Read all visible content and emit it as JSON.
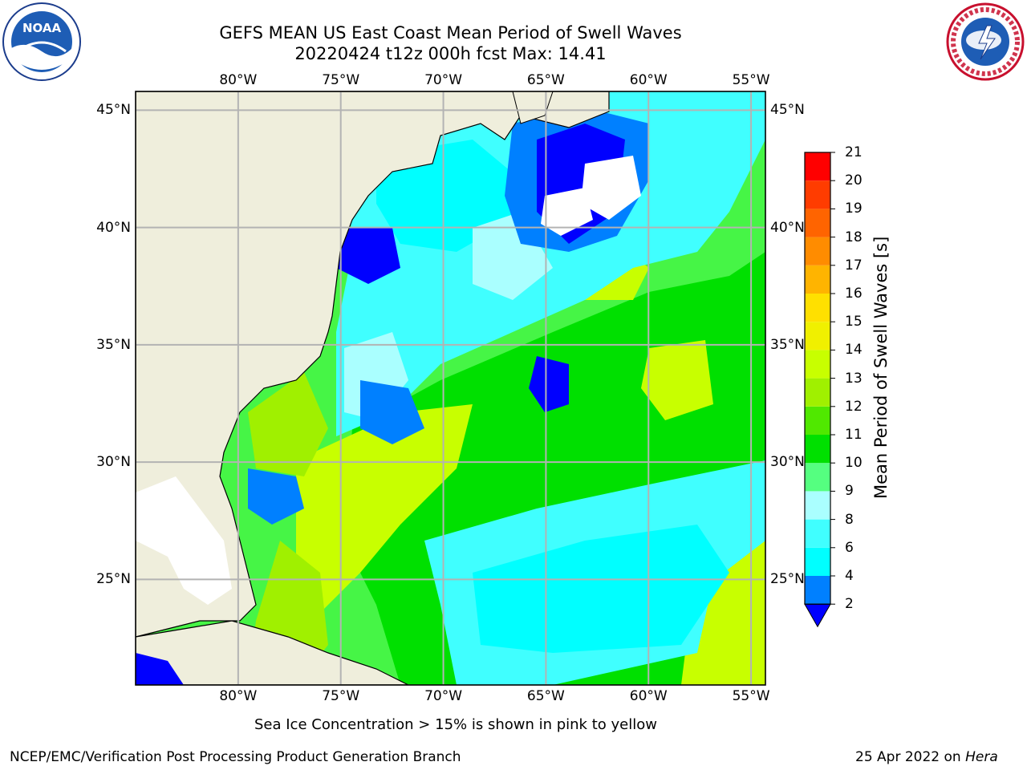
{
  "header": {
    "title_line1": "GEFS MEAN US East Coast Mean Period of Swell Waves",
    "title_line2": "20220424 t12z 000h fcst   Max: 14.41"
  },
  "logos": {
    "left": {
      "name": "noaa-logo",
      "text": "NOAA"
    },
    "right": {
      "name": "national-weather-service-logo",
      "text": "NATIONAL WEATHER SERVICE"
    }
  },
  "map": {
    "lon_labels": [
      "80°W",
      "75°W",
      "70°W",
      "65°W",
      "60°W",
      "55°W"
    ],
    "lat_labels": [
      "45°N",
      "40°N",
      "35°N",
      "30°N",
      "25°N"
    ],
    "lon_range": [
      -85,
      -54.3
    ],
    "lat_range": [
      20.5,
      45.8
    ],
    "colors": {
      "land": "#efeedc",
      "ocean_deep": "#46f546",
      "grid": "#b3b3b3"
    }
  },
  "colorbar": {
    "title": "Mean Period of Swell Waves [s]",
    "levels": [
      "2",
      "4",
      "6",
      "8",
      "9",
      "10",
      "11",
      "12",
      "13",
      "14",
      "15",
      "16",
      "17",
      "18",
      "19",
      "20",
      "21"
    ],
    "colors": [
      "#0000ff",
      "#0080ff",
      "#00ffff",
      "#40ffff",
      "#aaffff",
      "#55ff80",
      "#00e000",
      "#50e800",
      "#a0f000",
      "#c8ff00",
      "#f0f000",
      "#ffe000",
      "#ffb400",
      "#ff8c00",
      "#ff6400",
      "#ff3c00",
      "#ff0000"
    ]
  },
  "footer": {
    "sea_ice_note": "Sea Ice Concentration > 15% is shown in pink to yellow",
    "credit": "NCEP/EMC/Verification Post Processing Product Generation Branch",
    "date": "25 Apr 2022 on",
    "machine": "Hera"
  }
}
